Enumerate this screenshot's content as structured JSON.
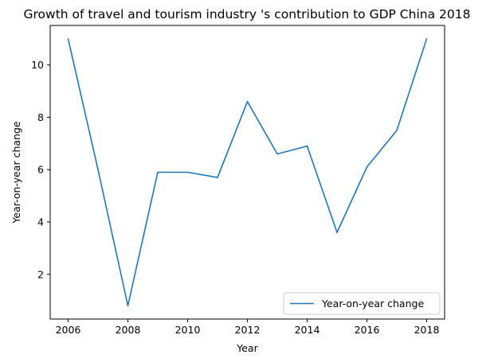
{
  "chart_data": {
    "type": "line",
    "title": "Growth of travel and tourism industry 's contribution to GDP China 2018",
    "xlabel": "Year",
    "ylabel": "Year-on-year change",
    "x": [
      2006,
      2007,
      2008,
      2009,
      2010,
      2011,
      2012,
      2013,
      2014,
      2015,
      2016,
      2017,
      2018
    ],
    "series": [
      {
        "name": "Year-on-year change",
        "values": [
          11.0,
          6.0,
          0.8,
          5.9,
          5.9,
          5.7,
          8.6,
          6.6,
          6.9,
          3.6,
          6.1,
          7.5,
          11.0
        ]
      }
    ],
    "xlim": [
      2005.4,
      2018.6
    ],
    "ylim": [
      0.29,
      11.51
    ],
    "xticks": [
      2006,
      2008,
      2010,
      2012,
      2014,
      2016,
      2018
    ],
    "yticks": [
      2,
      4,
      6,
      8,
      10
    ],
    "grid": false,
    "legend_position": "lower-right",
    "colors": {
      "line": "#1f77b4",
      "axes": "#000000",
      "background": "#ffffff"
    }
  }
}
